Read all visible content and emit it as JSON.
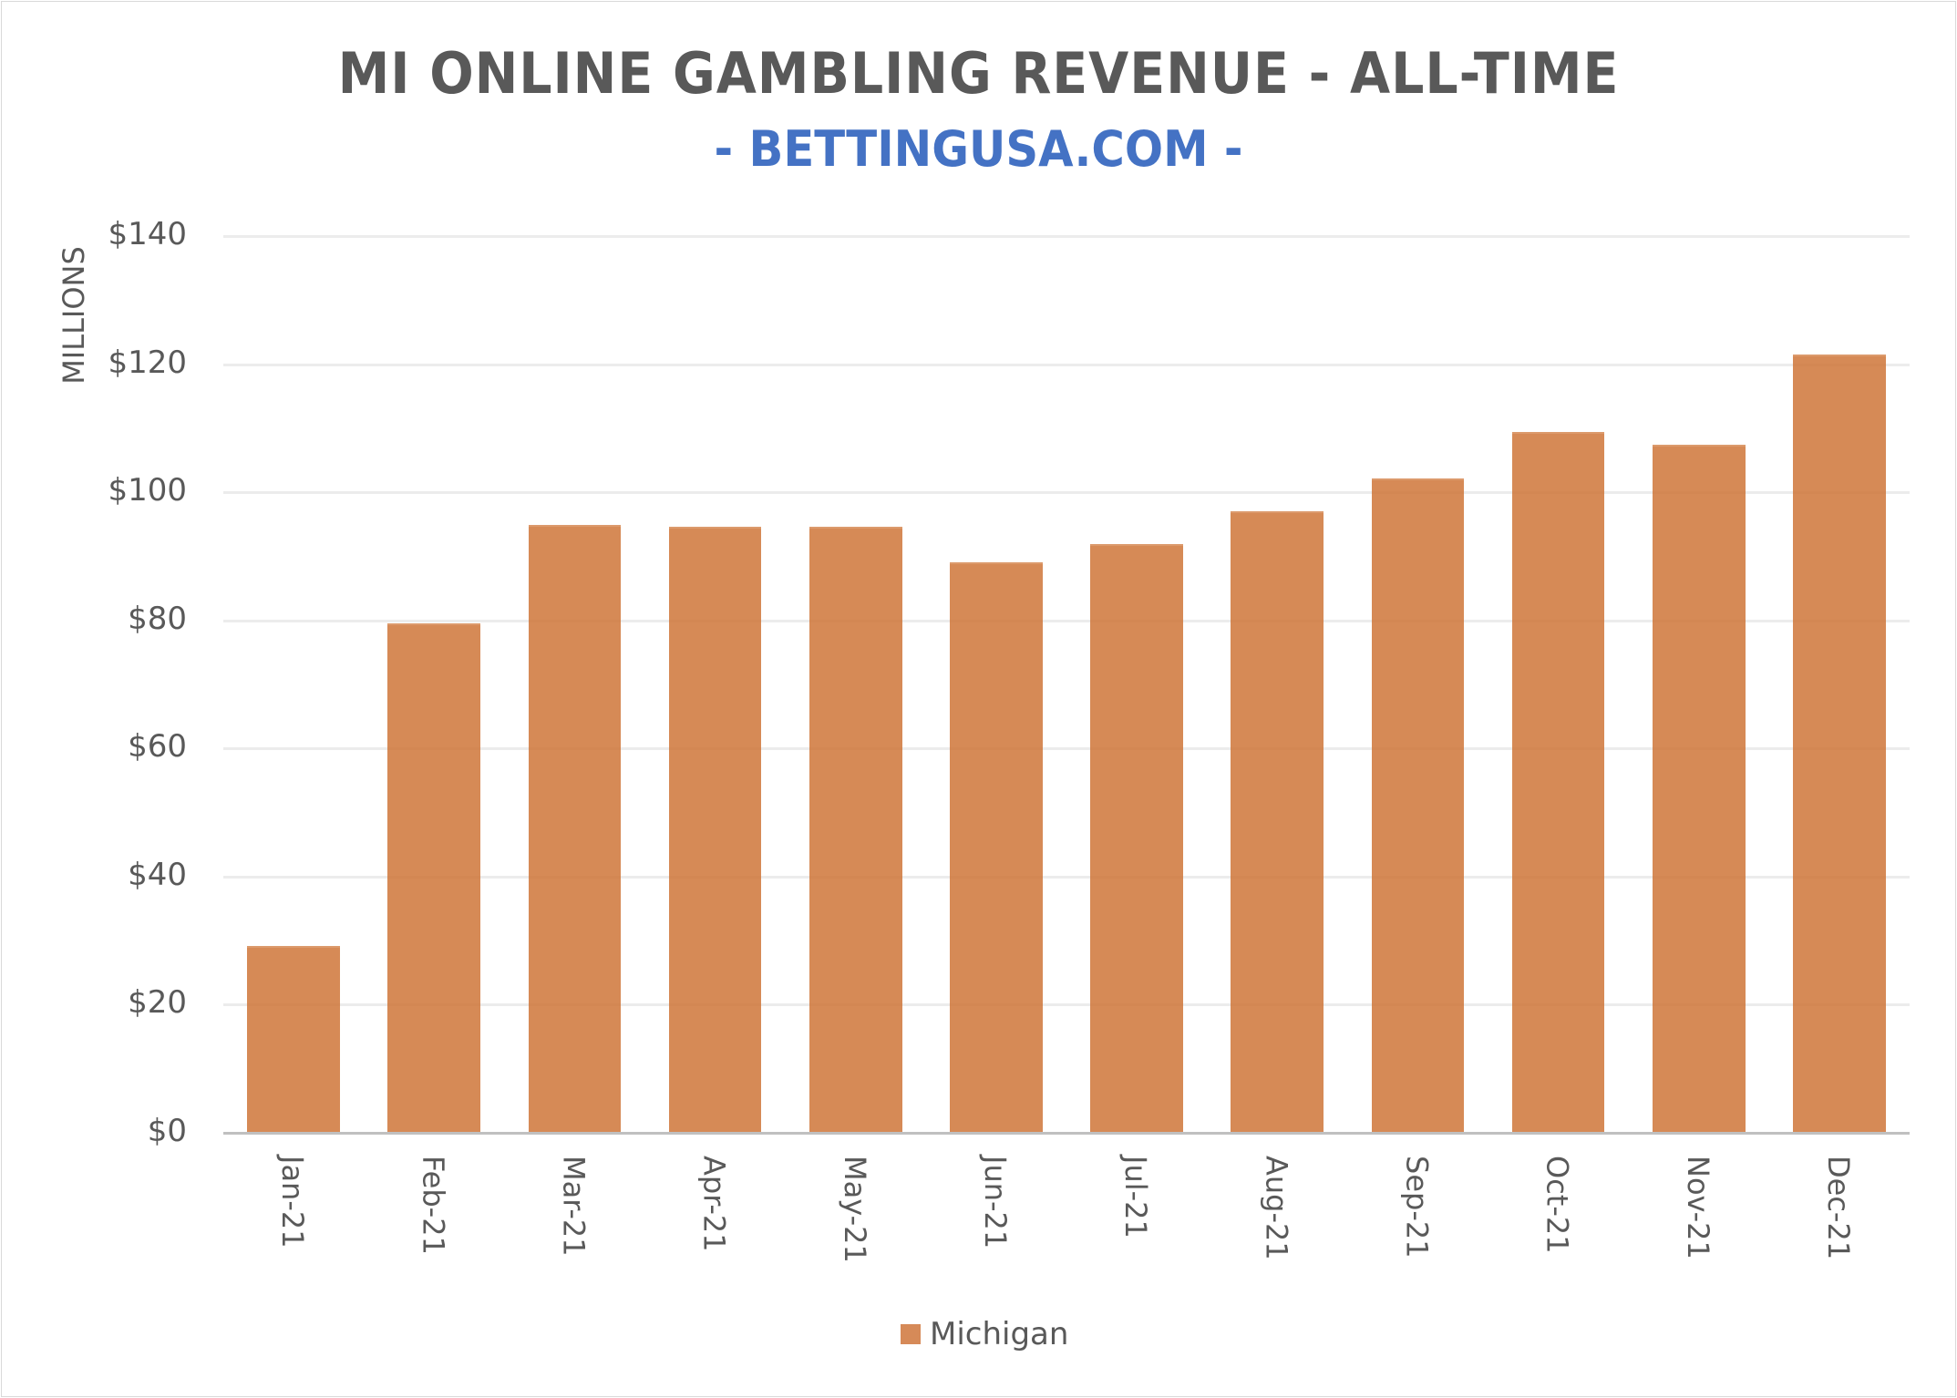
{
  "chart_data": {
    "type": "bar",
    "title": "MI ONLINE GAMBLING REVENUE - ALL-TIME",
    "subtitle": "- BETTINGUSA.COM -",
    "xlabel": "",
    "ylabel": "MILLIONS",
    "ylim": [
      0,
      140
    ],
    "yticks": [
      "$0",
      "$20",
      "$40",
      "$60",
      "$80",
      "$100",
      "$120",
      "$140"
    ],
    "grid": true,
    "legend_position": "bottom",
    "categories": [
      "Jan-21",
      "Feb-21",
      "Mar-21",
      "Apr-21",
      "May-21",
      "Jun-21",
      "Jul-21",
      "Aug-21",
      "Sep-21",
      "Oct-21",
      "Nov-21",
      "Dec-21"
    ],
    "series": [
      {
        "name": "Michigan",
        "color": "#d68a58",
        "values": [
          29.2,
          79.6,
          94.9,
          94.6,
          94.6,
          89.0,
          91.9,
          97.0,
          102.1,
          109.4,
          107.4,
          121.5
        ]
      }
    ]
  },
  "colors": {
    "bar": "#d68a58",
    "title": "#595959",
    "subtitle": "#4472c4",
    "gridline": "#ececec",
    "axis": "#c0c0c0"
  }
}
